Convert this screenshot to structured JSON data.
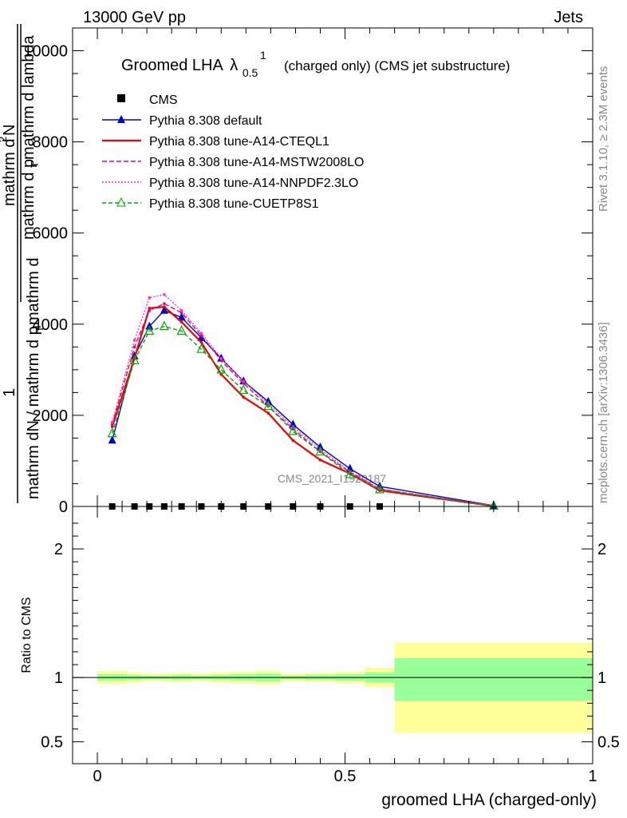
{
  "header": {
    "left": "13000 GeV pp",
    "right": "Jets"
  },
  "side_labels": {
    "rivet": "Rivet 3.1.10, ≥ 2.3M events",
    "mcplots": "mcplots.cern.ch [arXiv:1306.3436]"
  },
  "chart_data": [
    {
      "type": "line",
      "title_main": "Groomed LHA",
      "title_symbol": "λ",
      "title_sup": "1",
      "title_sub": "0.5",
      "title_rest": "(charged only) (CMS jet substructure)",
      "ylabel": "1 / mathrm dN / mathrm d p_T mathrm d^2N / mathrm d p_T mathrm d lambda",
      "watermark": "CMS_2021_I1920187",
      "xlim": [
        -0.05,
        1.0
      ],
      "ylim": [
        0,
        10500
      ],
      "yticks": [
        {
          "value": 0,
          "label": "0"
        },
        {
          "value": 2000,
          "label": "2000"
        },
        {
          "value": 4000,
          "label": "4000"
        },
        {
          "value": 6000,
          "label": "6000"
        },
        {
          "value": 8000,
          "label": "8000"
        },
        {
          "value": 10000,
          "label": "10000"
        }
      ],
      "x": [
        0.03,
        0.075,
        0.105,
        0.135,
        0.17,
        0.21,
        0.25,
        0.295,
        0.345,
        0.395,
        0.45,
        0.51,
        0.57,
        0.8
      ],
      "cms": [
        0,
        0,
        0,
        0,
        0,
        0,
        0,
        0,
        0,
        0,
        0,
        0,
        0,
        0
      ],
      "series": [
        {
          "name": "Pythia 8.308 default",
          "color": "#0000cc",
          "dash": "",
          "marker": "triangle-filled",
          "values": [
            1450,
            3300,
            3950,
            4300,
            4150,
            3700,
            3250,
            2750,
            2300,
            1800,
            1300,
            830,
            440,
            20
          ]
        },
        {
          "name": "Pythia 8.308 tune-A14-CTEQL1",
          "color": "#ee0000",
          "dash": "",
          "marker": "none",
          "values": [
            1750,
            3250,
            4350,
            4380,
            4050,
            3600,
            2900,
            2400,
            2050,
            1450,
            1020,
            720,
            350,
            10
          ]
        },
        {
          "name": "Pythia 8.308 tune-A14-MSTW2008LO",
          "color": "#e0008c",
          "dash": "6,3",
          "marker": "none",
          "values": [
            1800,
            3500,
            4300,
            4450,
            4250,
            3750,
            3200,
            2700,
            2200,
            1700,
            1200,
            750,
            380,
            10
          ]
        },
        {
          "name": "Pythia 8.308 tune-A14-NNPDF2.3LO",
          "color": "#ff33cc",
          "dash": "2,2",
          "marker": "none",
          "values": [
            1850,
            3650,
            4580,
            4650,
            4300,
            3800,
            3250,
            2750,
            2250,
            1750,
            1250,
            770,
            390,
            10
          ]
        },
        {
          "name": "Pythia 8.308 tune-CUETP8S1",
          "color": "#00aa00",
          "dash": "5,3",
          "marker": "triangle-open",
          "values": [
            1600,
            3200,
            3850,
            3950,
            3850,
            3450,
            3000,
            2550,
            2200,
            1650,
            1200,
            700,
            370,
            10
          ]
        }
      ]
    },
    {
      "type": "area",
      "ylabel": "Ratio to CMS",
      "xlabel": "groomed LHA (charged-only)",
      "xlim": [
        -0.05,
        1.0
      ],
      "ylim": [
        0.33,
        2.33
      ],
      "xticks": [
        {
          "value": 0,
          "label": "0"
        },
        {
          "value": 0.5,
          "label": "0.5"
        },
        {
          "value": 1,
          "label": "1"
        }
      ],
      "yticks": [
        {
          "value": 0.5,
          "label": "0.5"
        },
        {
          "value": 1,
          "label": "1"
        },
        {
          "value": 2,
          "label": "2"
        }
      ],
      "bins": [
        {
          "x0": 0.0,
          "x1": 0.06,
          "inner": [
            0.975,
            1.025
          ],
          "outer": [
            0.95,
            1.05
          ]
        },
        {
          "x0": 0.06,
          "x1": 0.09,
          "inner": [
            0.98,
            1.02
          ],
          "outer": [
            0.96,
            1.04
          ]
        },
        {
          "x0": 0.09,
          "x1": 0.12,
          "inner": [
            0.985,
            1.015
          ],
          "outer": [
            0.97,
            1.03
          ]
        },
        {
          "x0": 0.12,
          "x1": 0.15,
          "inner": [
            0.985,
            1.015
          ],
          "outer": [
            0.97,
            1.03
          ]
        },
        {
          "x0": 0.15,
          "x1": 0.19,
          "inner": [
            0.98,
            1.02
          ],
          "outer": [
            0.965,
            1.035
          ]
        },
        {
          "x0": 0.19,
          "x1": 0.23,
          "inner": [
            0.985,
            1.015
          ],
          "outer": [
            0.97,
            1.03
          ]
        },
        {
          "x0": 0.23,
          "x1": 0.27,
          "inner": [
            0.98,
            1.02
          ],
          "outer": [
            0.96,
            1.04
          ]
        },
        {
          "x0": 0.27,
          "x1": 0.32,
          "inner": [
            0.975,
            1.025
          ],
          "outer": [
            0.955,
            1.045
          ]
        },
        {
          "x0": 0.32,
          "x1": 0.37,
          "inner": [
            0.97,
            1.03
          ],
          "outer": [
            0.945,
            1.055
          ]
        },
        {
          "x0": 0.37,
          "x1": 0.42,
          "inner": [
            0.985,
            1.015
          ],
          "outer": [
            0.97,
            1.03
          ]
        },
        {
          "x0": 0.42,
          "x1": 0.48,
          "inner": [
            0.98,
            1.02
          ],
          "outer": [
            0.965,
            1.035
          ]
        },
        {
          "x0": 0.48,
          "x1": 0.54,
          "inner": [
            0.975,
            1.025
          ],
          "outer": [
            0.955,
            1.045
          ]
        },
        {
          "x0": 0.54,
          "x1": 0.6,
          "inner": [
            0.96,
            1.04
          ],
          "outer": [
            0.925,
            1.075
          ]
        },
        {
          "x0": 0.6,
          "x1": 1.0,
          "inner": [
            0.82,
            1.15
          ],
          "outer": [
            0.57,
            1.27
          ]
        }
      ],
      "colors": {
        "inner": "#99ff99",
        "outer": "#ffff99"
      }
    }
  ]
}
